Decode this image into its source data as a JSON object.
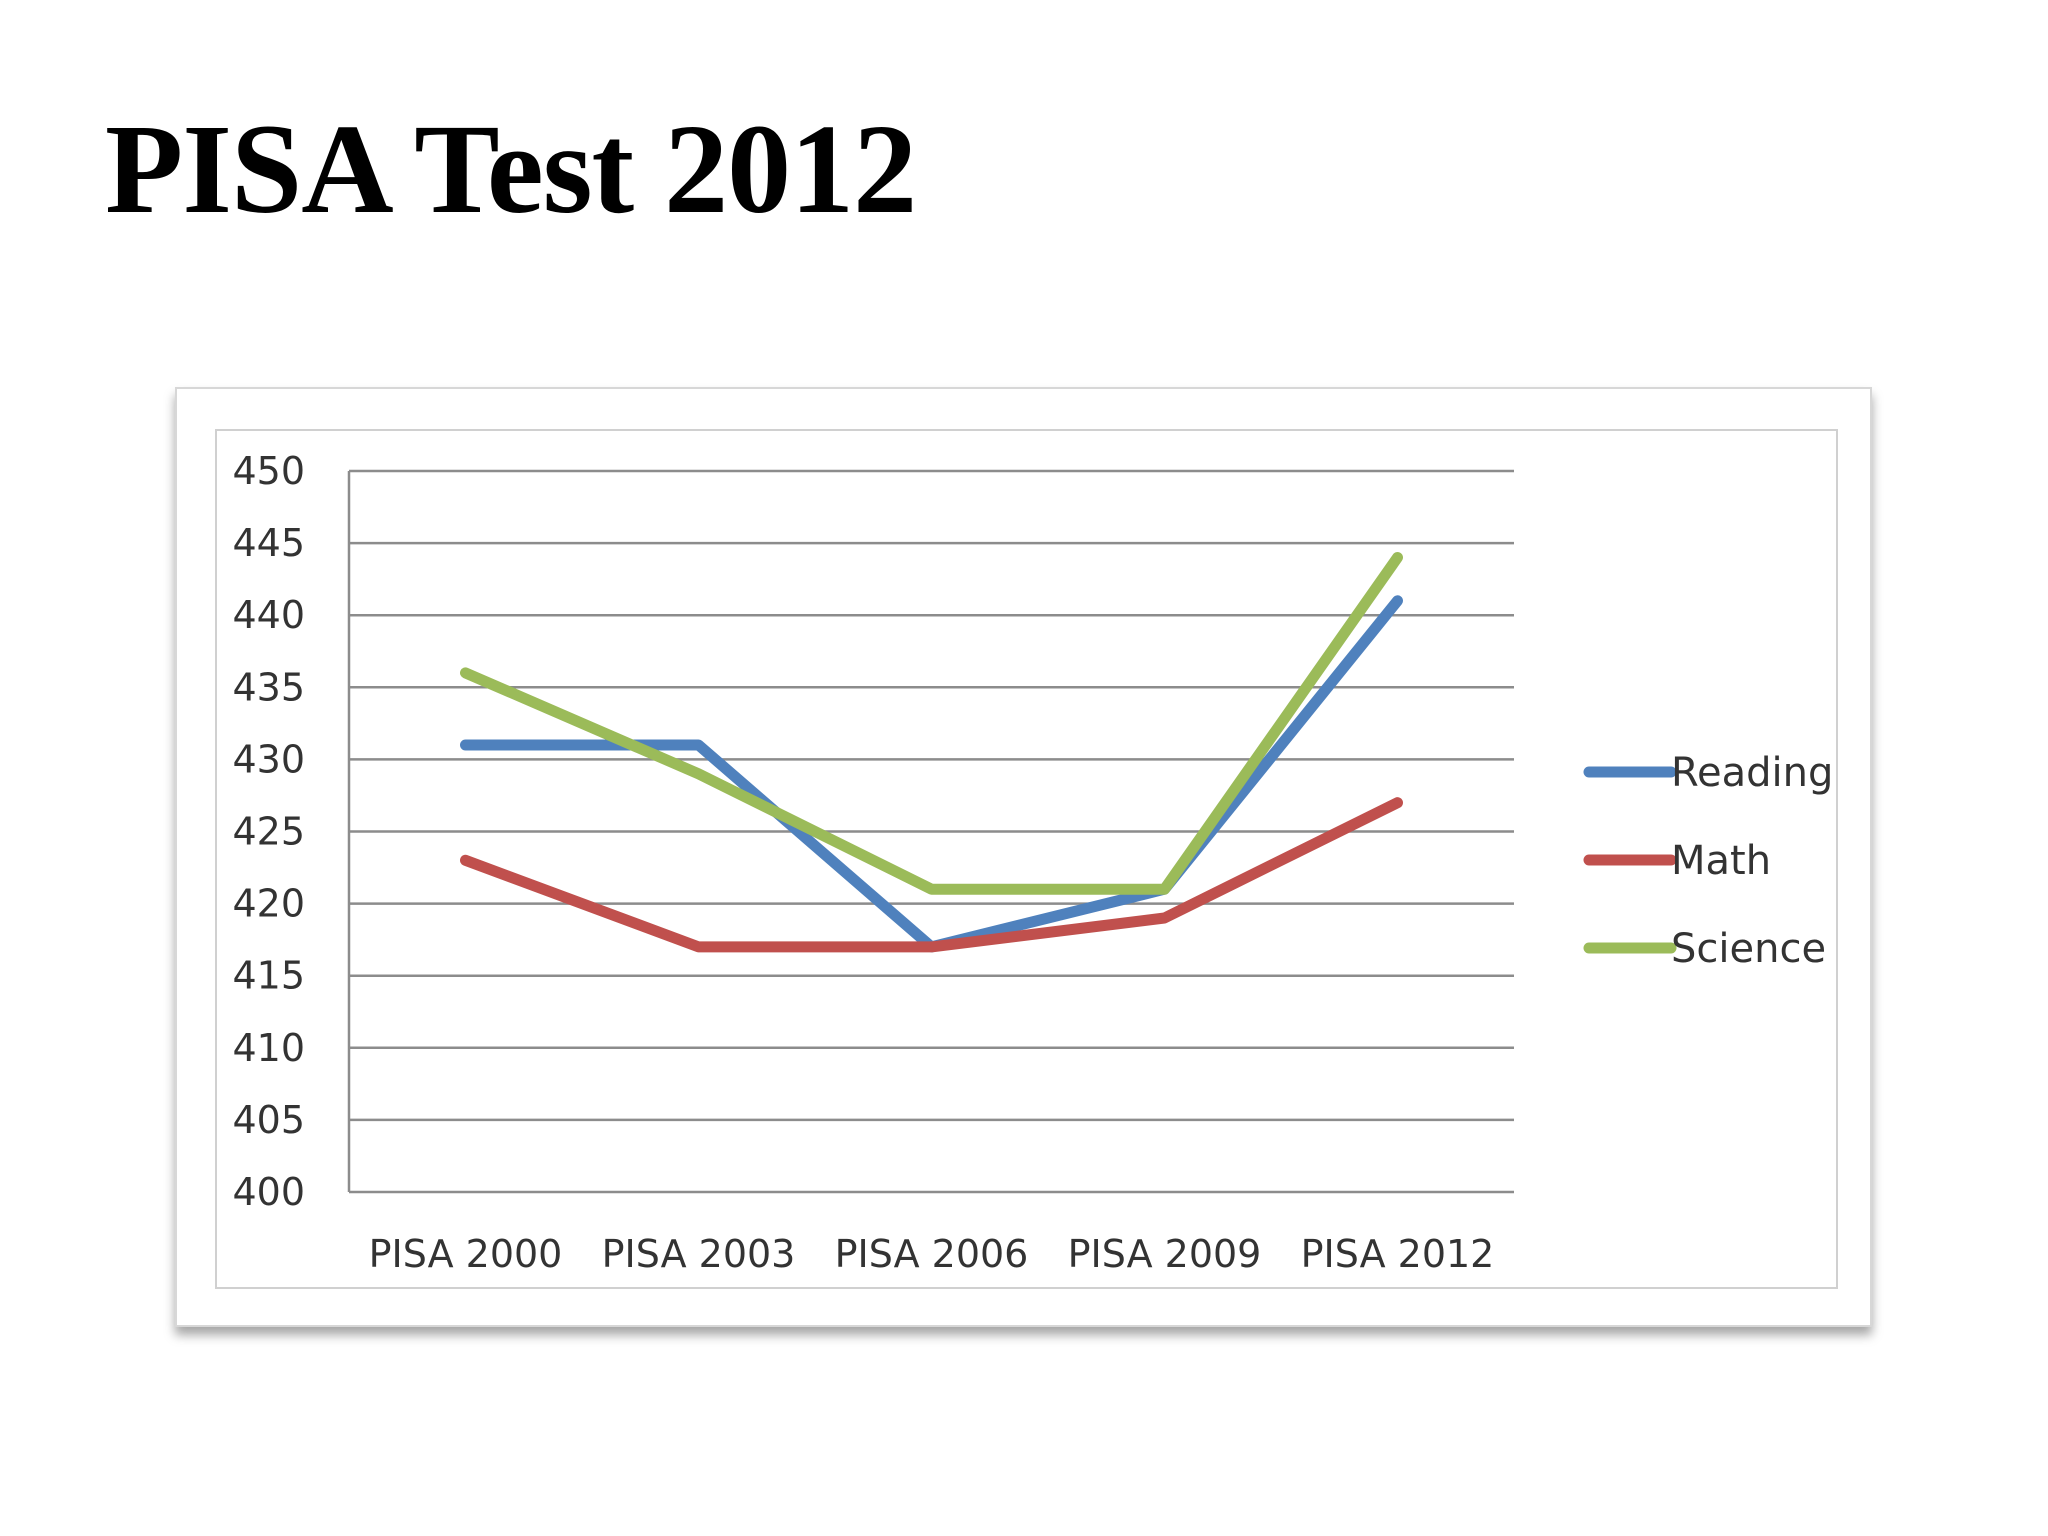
{
  "slide": {
    "title": "PISA Test 2012"
  },
  "chart_data": {
    "type": "line",
    "title": "",
    "xlabel": "",
    "ylabel": "",
    "categories": [
      "PISA 2000",
      "PISA 2003",
      "PISA 2006",
      "PISA 2009",
      "PISA 2012"
    ],
    "ylim": [
      400,
      450
    ],
    "yticks": [
      "400",
      "405",
      "410",
      "415",
      "420",
      "425",
      "430",
      "435",
      "440",
      "445",
      "450"
    ],
    "grid": true,
    "legend_position": "right",
    "series": [
      {
        "name": "Reading",
        "color": "#4f81bd",
        "values": [
          431,
          431,
          417,
          421,
          441
        ]
      },
      {
        "name": "Math",
        "color": "#c0504d",
        "values": [
          423,
          417,
          417,
          419,
          427
        ]
      },
      {
        "name": "Science",
        "color": "#9bbb59",
        "values": [
          436,
          429,
          421,
          421,
          444
        ]
      }
    ]
  }
}
